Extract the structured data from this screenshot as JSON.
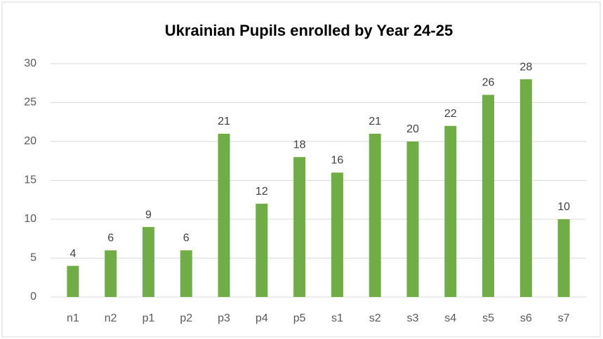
{
  "chart_data": {
    "type": "bar",
    "title": "Ukrainian Pupils enrolled by Year 24-25",
    "categories": [
      "n1",
      "n2",
      "p1",
      "p2",
      "p3",
      "p4",
      "p5",
      "s1",
      "s2",
      "s3",
      "s4",
      "s5",
      "s6",
      "s7"
    ],
    "values": [
      4,
      6,
      9,
      6,
      21,
      12,
      18,
      16,
      21,
      20,
      22,
      26,
      28,
      10
    ],
    "color": "#70ad47",
    "ylim": [
      0,
      30
    ],
    "yticks": [
      0,
      5,
      10,
      15,
      20,
      25,
      30
    ],
    "grid": true,
    "data_labels": true
  }
}
